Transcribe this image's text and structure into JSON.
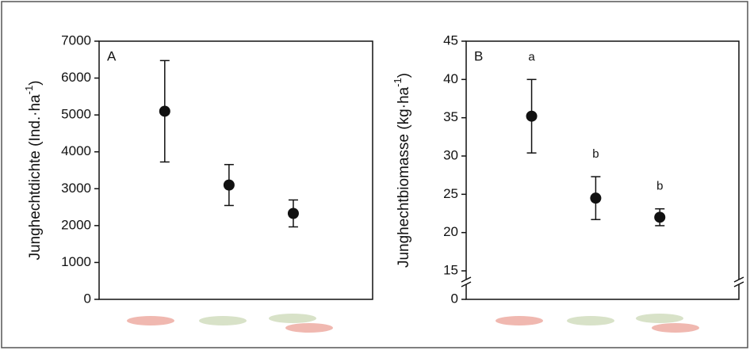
{
  "chart_data": [
    {
      "type": "scatter",
      "panel_label": "A",
      "ylabel": [
        "Junghechtdichte (Ind.·ha",
        "-1",
        ")"
      ],
      "categories": [
        null,
        null,
        null
      ],
      "values": [
        5100,
        3100,
        2330
      ],
      "errors": [
        1375,
        555,
        365
      ],
      "color": "#111111",
      "ylim": [
        0,
        7000
      ],
      "yticks": [
        0,
        1000,
        2000,
        3000,
        4000,
        5000,
        6000,
        7000
      ]
    },
    {
      "type": "scatter",
      "panel_label": "B",
      "ylabel": [
        "Junghechtbiomasse (kg·ha",
        "-1",
        ")"
      ],
      "categories": [
        null,
        null,
        null
      ],
      "values": [
        35.2,
        24.5,
        22.0
      ],
      "errors": [
        4.8,
        2.8,
        1.1
      ],
      "color": "#111111",
      "annotations": [
        "a",
        "b",
        "b"
      ],
      "ylim": [
        0,
        45
      ],
      "axis_break": [
        0,
        15
      ],
      "yticks": [
        0,
        15,
        20,
        25,
        30,
        35,
        40,
        45
      ]
    }
  ]
}
